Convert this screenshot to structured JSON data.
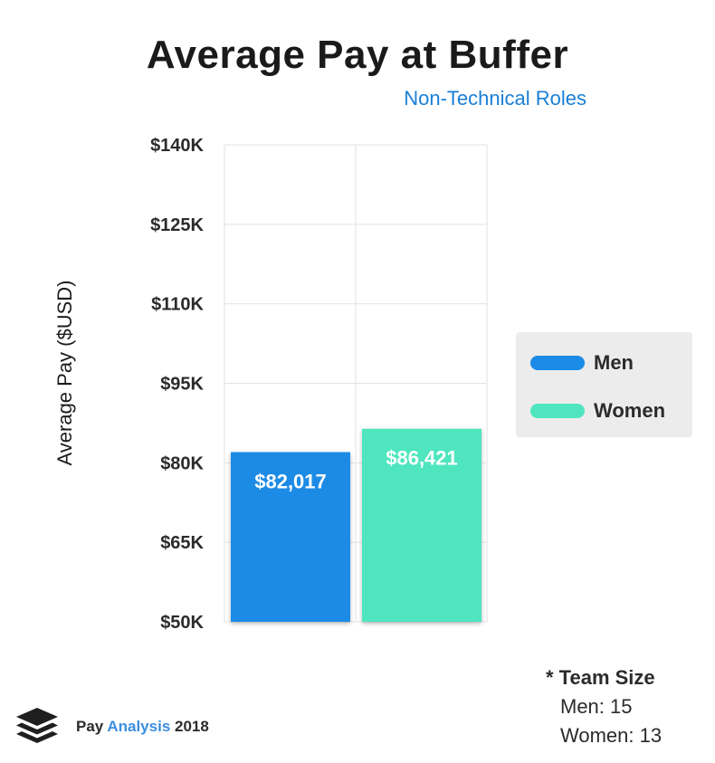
{
  "chart_data": {
    "type": "bar",
    "title": "Average Pay at Buffer",
    "subtitle": "Non-Technical Roles",
    "xlabel": "",
    "ylabel": "Average Pay ($USD)",
    "ylim": [
      50000,
      140000
    ],
    "yticks": [
      50000,
      65000,
      80000,
      95000,
      110000,
      125000,
      140000
    ],
    "ytick_labels": [
      "$50K",
      "$65K",
      "$80K",
      "$95K",
      "$110K",
      "$125K",
      "$140K"
    ],
    "categories": [
      "Men",
      "Women"
    ],
    "values": [
      82017,
      86421
    ],
    "value_labels": [
      "$82,017",
      "$86,421"
    ],
    "colors": [
      "#1a8be6",
      "#4fe6bf"
    ],
    "grid": true,
    "legend_position": "right"
  },
  "legend": {
    "items": [
      {
        "label": "Men",
        "color": "#1a8be6"
      },
      {
        "label": "Women",
        "color": "#4fe6bf"
      }
    ]
  },
  "team_size": {
    "title": "* Team Size",
    "lines": [
      "Men: 15",
      "Women: 13"
    ]
  },
  "footer": {
    "part1": "Pay ",
    "part2": "Analysis",
    "part3": " 2018",
    "logo_icon": "buffer-stack-icon"
  }
}
